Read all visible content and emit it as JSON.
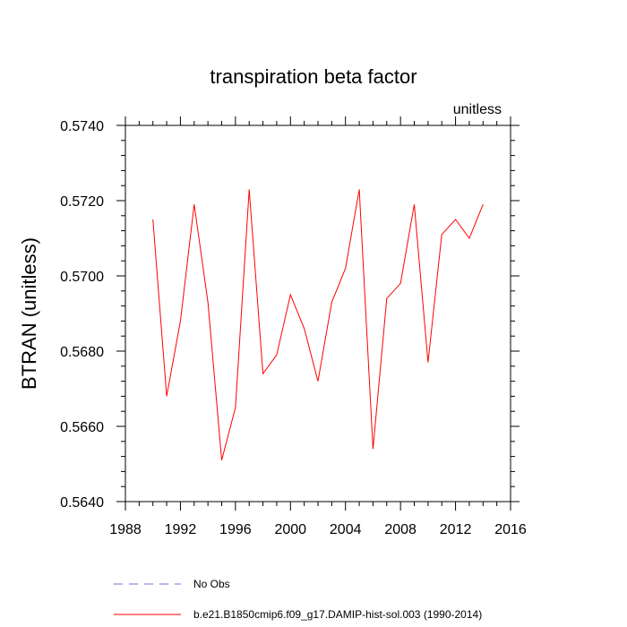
{
  "chart_data": {
    "type": "line",
    "title": "transpiration beta factor",
    "units_label": "unitless",
    "xlabel": "",
    "ylabel": "BTRAN  (unitless)",
    "xlim": [
      1988,
      2016
    ],
    "ylim": [
      0.564,
      0.574
    ],
    "x_ticks": [
      1988,
      1992,
      1996,
      2000,
      2004,
      2008,
      2012,
      2016
    ],
    "y_ticks": [
      0.564,
      0.566,
      0.568,
      0.57,
      0.572,
      0.574
    ],
    "y_tick_labels": [
      "0.5640",
      "0.5660",
      "0.5680",
      "0.5700",
      "0.5720",
      "0.5740"
    ],
    "grid": false,
    "series": [
      {
        "name": "b.e21.B1850cmip6.f09_g17.DAMIP-hist-sol.003 (1990-2014)",
        "color": "#ff0000",
        "x": [
          1990,
          1991,
          1992,
          1993,
          1994,
          1995,
          1996,
          1997,
          1998,
          1999,
          2000,
          2001,
          2002,
          2003,
          2004,
          2005,
          2006,
          2007,
          2008,
          2009,
          2010,
          2011,
          2012,
          2013,
          2014
        ],
        "y": [
          0.5715,
          0.5668,
          0.5688,
          0.5719,
          0.5693,
          0.5651,
          0.5665,
          0.5723,
          0.5674,
          0.5679,
          0.5695,
          0.5686,
          0.5672,
          0.5693,
          0.5702,
          0.5723,
          0.5654,
          0.5694,
          0.5698,
          0.5719,
          0.5677,
          0.5711,
          0.5715,
          0.571,
          0.5719
        ]
      }
    ],
    "legend": {
      "placement": "bottom-left",
      "entries": [
        {
          "label": "No Obs",
          "color": "#6f6fd8",
          "style": "dashed"
        },
        {
          "label": "b.e21.B1850cmip6.f09_g17.DAMIP-hist-sol.003 (1990-2014)",
          "color": "#ff0000",
          "style": "solid"
        }
      ]
    }
  }
}
